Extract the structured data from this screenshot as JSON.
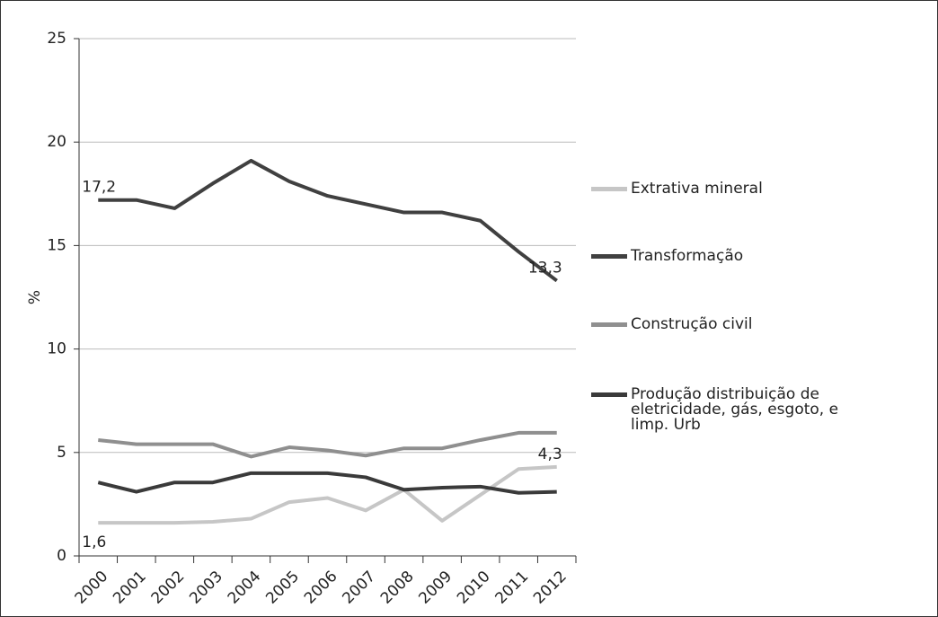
{
  "chart_data": {
    "type": "line",
    "y_label": "%",
    "categories": [
      "2000",
      "2001",
      "2002",
      "2003",
      "2004",
      "2005",
      "2006",
      "2007",
      "2008",
      "2009",
      "2010",
      "2011",
      "2012"
    ],
    "series": [
      {
        "name": "Extrativa mineral",
        "color": "#c6c6c6",
        "values": [
          1.6,
          1.6,
          1.6,
          1.65,
          1.8,
          2.6,
          2.8,
          2.2,
          3.2,
          1.7,
          2.95,
          4.2,
          4.3
        ],
        "value_labels": [
          "1,6",
          null,
          null,
          null,
          null,
          null,
          null,
          null,
          null,
          null,
          null,
          null,
          "4,3"
        ]
      },
      {
        "name": "Transformação",
        "color": "#404040",
        "values": [
          17.2,
          17.2,
          16.8,
          18.0,
          19.1,
          18.1,
          17.4,
          17.0,
          16.6,
          16.6,
          16.2,
          14.7,
          13.3
        ],
        "value_labels": [
          "17,2",
          null,
          null,
          null,
          null,
          null,
          null,
          null,
          null,
          null,
          null,
          null,
          "13,3"
        ]
      },
      {
        "name": "Construção civil",
        "color": "#8f8f8f",
        "values": [
          5.6,
          5.4,
          5.4,
          5.4,
          4.8,
          5.25,
          5.1,
          4.85,
          5.2,
          5.2,
          5.6,
          5.95,
          5.95
        ]
      },
      {
        "name": "Produção distribuição de eletricidade, gás, esgoto, e limp. Urb",
        "color": "#3a3a3a",
        "values": [
          3.55,
          3.1,
          3.55,
          3.55,
          4.0,
          4.0,
          4.0,
          3.8,
          3.2,
          3.3,
          3.35,
          3.05,
          3.1
        ]
      }
    ],
    "ylim": [
      0,
      25
    ],
    "yticks": [
      0,
      5,
      10,
      15,
      20,
      25
    ],
    "grid": true
  }
}
